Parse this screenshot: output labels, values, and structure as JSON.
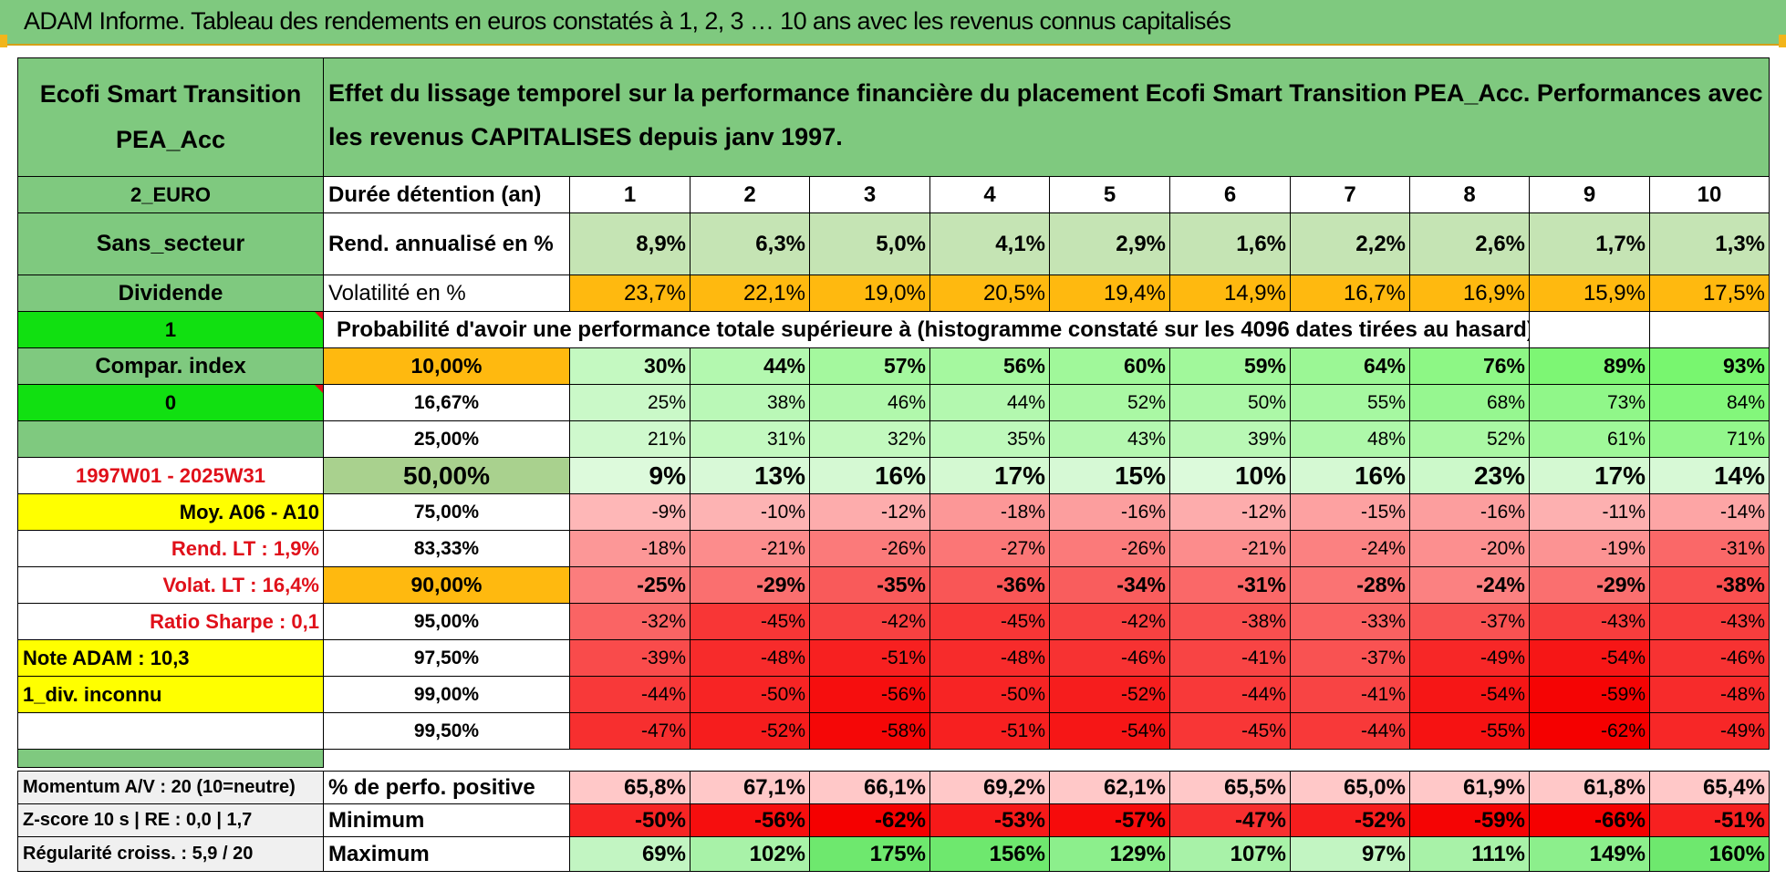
{
  "title": "ADAM Informe. Tableau des rendements en euros constatés à 1, 2, 3 … 10 ans avec les revenus connus capitalisés",
  "fund": {
    "name": "Ecofi Smart Transition PEA_Acc",
    "description": "Effet du lissage temporel sur la performance financière du placement Ecofi Smart Transition PEA_Acc. Performances avec les revenus CAPITALISES depuis janv 1997.",
    "currency": "2_EURO",
    "sector": "Sans_secteur",
    "income": "Dividende",
    "flag_value": "1",
    "compar_index": "Compar. index",
    "zero_value": "0",
    "period": "1997W01 - 2025W31",
    "moy": "Moy. A06 - A10",
    "rend_lt": "Rend. LT :    1,9%",
    "volat_lt": "Volat. LT :    16,4%",
    "sharpe": "Ratio Sharpe :     0,1",
    "note": "Note ADAM : 10,3",
    "div_inconnu": "1_div. inconnu"
  },
  "years_label": "Durée détention (an)",
  "years": [
    "1",
    "2",
    "3",
    "4",
    "5",
    "6",
    "7",
    "8",
    "9",
    "10"
  ],
  "rend_label": "Rend. annualisé en %",
  "rend": [
    "8,9%",
    "6,3%",
    "5,0%",
    "4,1%",
    "2,9%",
    "1,6%",
    "2,2%",
    "2,6%",
    "1,7%",
    "1,3%"
  ],
  "vol_label": "Volatilité en %",
  "vol": [
    "23,7%",
    "22,1%",
    "19,0%",
    "20,5%",
    "19,4%",
    "14,9%",
    "16,7%",
    "16,9%",
    "15,9%",
    "17,5%"
  ],
  "prob_title": "Probabilité d'avoir une performance totale supérieure à (histogramme constaté sur les 4096 dates tirées au hasard)",
  "prob_rows": [
    {
      "level": "10,00%",
      "values": [
        "30%",
        "44%",
        "57%",
        "56%",
        "60%",
        "59%",
        "64%",
        "76%",
        "89%",
        "93%"
      ]
    },
    {
      "level": "16,67%",
      "values": [
        "25%",
        "38%",
        "46%",
        "44%",
        "52%",
        "50%",
        "55%",
        "68%",
        "73%",
        "84%"
      ]
    },
    {
      "level": "25,00%",
      "values": [
        "21%",
        "31%",
        "32%",
        "35%",
        "43%",
        "39%",
        "48%",
        "52%",
        "61%",
        "71%"
      ]
    },
    {
      "level": "50,00%",
      "values": [
        "9%",
        "13%",
        "16%",
        "17%",
        "15%",
        "10%",
        "16%",
        "23%",
        "17%",
        "14%"
      ]
    },
    {
      "level": "75,00%",
      "values": [
        "-9%",
        "-10%",
        "-12%",
        "-18%",
        "-16%",
        "-12%",
        "-15%",
        "-16%",
        "-11%",
        "-14%"
      ]
    },
    {
      "level": "83,33%",
      "values": [
        "-18%",
        "-21%",
        "-26%",
        "-27%",
        "-26%",
        "-21%",
        "-24%",
        "-20%",
        "-19%",
        "-31%"
      ]
    },
    {
      "level": "90,00%",
      "values": [
        "-25%",
        "-29%",
        "-35%",
        "-36%",
        "-34%",
        "-31%",
        "-28%",
        "-24%",
        "-29%",
        "-38%"
      ]
    },
    {
      "level": "95,00%",
      "values": [
        "-32%",
        "-45%",
        "-42%",
        "-45%",
        "-42%",
        "-38%",
        "-33%",
        "-37%",
        "-43%",
        "-43%"
      ]
    },
    {
      "level": "97,50%",
      "values": [
        "-39%",
        "-48%",
        "-51%",
        "-48%",
        "-46%",
        "-41%",
        "-37%",
        "-49%",
        "-54%",
        "-46%"
      ]
    },
    {
      "level": "99,00%",
      "values": [
        "-44%",
        "-50%",
        "-56%",
        "-50%",
        "-52%",
        "-44%",
        "-41%",
        "-54%",
        "-59%",
        "-48%"
      ]
    },
    {
      "level": "99,50%",
      "values": [
        "-47%",
        "-52%",
        "-58%",
        "-51%",
        "-54%",
        "-45%",
        "-44%",
        "-55%",
        "-62%",
        "-49%"
      ]
    }
  ],
  "bottom": [
    {
      "left": "Momentum A/V : 20 (10=neutre)",
      "label": "% de perfo. positive",
      "values": [
        "65,8%",
        "67,1%",
        "66,1%",
        "69,2%",
        "62,1%",
        "65,5%",
        "65,0%",
        "61,9%",
        "61,8%",
        "65,4%"
      ]
    },
    {
      "left": "Z-score 10 s | RE : 0,0 | 1,7",
      "label": "Minimum",
      "values": [
        "-50%",
        "-56%",
        "-62%",
        "-53%",
        "-57%",
        "-47%",
        "-52%",
        "-59%",
        "-66%",
        "-51%"
      ]
    },
    {
      "left": "Régularité croiss. : 5,9 / 20",
      "label": "Maximum",
      "values": [
        "69%",
        "102%",
        "175%",
        "156%",
        "129%",
        "107%",
        "97%",
        "111%",
        "149%",
        "160%"
      ]
    }
  ],
  "colors": {
    "header_green": "#7fc97f",
    "light_green": "#c5e4b4",
    "orange": "#ffb90f",
    "bright_green": "#11e011",
    "yellow": "#ffff00",
    "red_text": "#e0101a"
  }
}
